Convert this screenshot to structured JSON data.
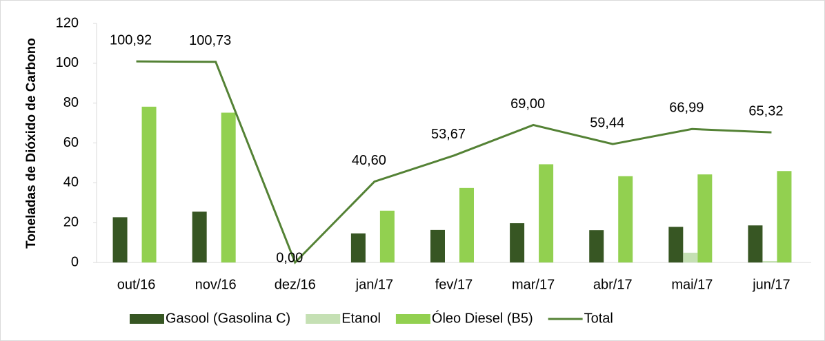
{
  "chart_data": {
    "type": "bar_line",
    "y_axis_label": "Toneladas de Dióxido de Carbono",
    "categories": [
      "out/16",
      "nov/16",
      "dez/16",
      "jan/17",
      "fev/17",
      "mar/17",
      "abr/17",
      "mai/17",
      "jun/17"
    ],
    "series": [
      {
        "name": "Gasool (Gasolina C)",
        "type": "bar",
        "color": "#375623",
        "values": [
          22.7,
          25.5,
          0,
          14.6,
          16.3,
          19.7,
          16.2,
          17.9,
          18.6
        ]
      },
      {
        "name": "Etanol",
        "type": "bar",
        "color": "#c5e0b4",
        "values": [
          0,
          0,
          0,
          0,
          0,
          0,
          0,
          4.9,
          0.7
        ]
      },
      {
        "name": "Óleo Diesel (B5)",
        "type": "bar",
        "color": "#92d050",
        "values": [
          78.2,
          75.2,
          0,
          26.0,
          37.4,
          49.3,
          43.3,
          44.2,
          45.9
        ]
      },
      {
        "name": "Total",
        "type": "line",
        "color": "#548235",
        "values": [
          100.92,
          100.73,
          0,
          40.6,
          53.67,
          69.0,
          59.44,
          66.99,
          65.32
        ],
        "value_labels": [
          "100,92",
          "100,73",
          "0,00",
          "40,60",
          "53,67",
          "69,00",
          "59,44",
          "66,99",
          "65,32"
        ]
      }
    ],
    "ylim": [
      0,
      120
    ],
    "yticks": [
      0,
      20,
      40,
      60,
      80,
      100,
      120
    ],
    "legend": "bottom"
  }
}
